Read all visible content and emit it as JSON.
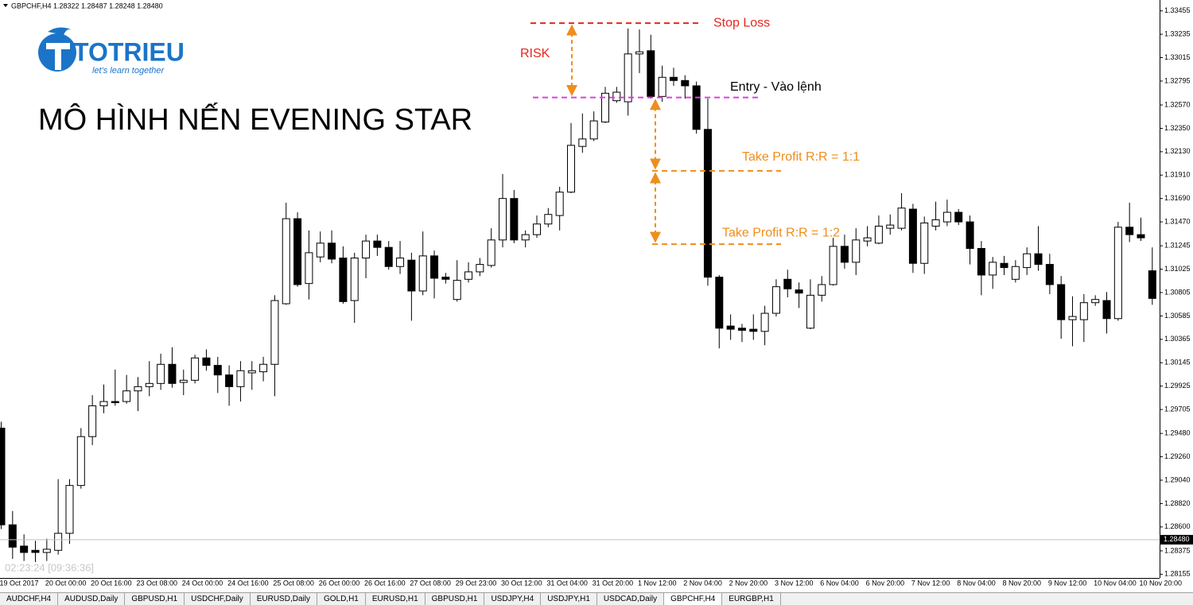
{
  "window": {
    "symbol_info": "GBPCHF,H4  1.28322 1.28487 1.28248 1.28480",
    "timer": "02:23:24 [09:36:36]",
    "tabs": [
      "AUDCHF,H4",
      "AUDUSD,Daily",
      "GBPUSD,H1",
      "USDCHF,Daily",
      "EURUSD,Daily",
      "GOLD,H1",
      "EURUSD,H1",
      "GBPUSD,H1",
      "USDJPY,H4",
      "USDJPY,H1",
      "USDCAD,Daily",
      "GBPCHF,H4",
      "EURGBP,H1"
    ],
    "active_tab": 11
  },
  "logo": {
    "name": "TOTRIEU",
    "tagline": "let's learn together"
  },
  "chart_data": {
    "type": "candlestick",
    "title": "MÔ HÌNH NẾN EVENING STAR",
    "categories": [
      "19 Oct 2017",
      null,
      null,
      null,
      "20 Oct 00:00",
      null,
      null,
      null,
      "20 Oct 16:00",
      null,
      null,
      null,
      "23 Oct 08:00",
      null,
      null,
      null,
      "24 Oct 00:00",
      null,
      null,
      null,
      "24 Oct 16:00",
      null,
      null,
      null,
      "25 Oct 08:00",
      null,
      null,
      null,
      "26 Oct 00:00",
      null,
      null,
      null,
      "26 Oct 16:00",
      null,
      null,
      null,
      "27 Oct 08:00",
      null,
      null,
      null,
      "29 Oct 23:00",
      null,
      null,
      null,
      "30 Oct 12:00",
      null,
      null,
      null,
      "31 Oct 04:00",
      null,
      null,
      null,
      "31 Oct 20:00",
      null,
      null,
      null,
      "1 Nov 12:00",
      null,
      null,
      null,
      "2 Nov 04:00",
      null,
      null,
      null,
      "2 Nov 20:00",
      null,
      null,
      null,
      "3 Nov 12:00",
      null,
      null,
      null,
      "6 Nov 04:00",
      null,
      null,
      null,
      "6 Nov 20:00",
      null,
      null,
      null,
      "7 Nov 12:00",
      null,
      null,
      null,
      "8 Nov 04:00",
      null,
      null,
      null,
      "8 Nov 20:00",
      null,
      null,
      null,
      "9 Nov 12:00",
      null,
      null,
      null,
      "10 Nov 04:00",
      null,
      null,
      null,
      "10 Nov 20:00",
      null
    ],
    "open": [
      1.2953,
      1.2862,
      1.2842,
      1.2838,
      1.2836,
      1.2838,
      1.2854,
      1.2899,
      1.2945,
      1.2974,
      1.2978,
      1.2978,
      1.2988,
      1.2992,
      1.2995,
      1.3013,
      1.2996,
      1.2998,
      1.3019,
      1.3012,
      1.3003,
      1.2992,
      1.3005,
      1.3006,
      1.3013,
      1.307,
      1.315,
      1.3089,
      1.3114,
      1.3127,
      1.3113,
      1.3073,
      1.3113,
      1.3129,
      1.3123,
      1.3105,
      1.3111,
      1.3082,
      1.3115,
      1.3095,
      1.3074,
      1.3093,
      1.31,
      1.3106,
      1.313,
      1.3169,
      1.313,
      1.3135,
      1.3145,
      1.3153,
      1.3175,
      1.3218,
      1.3225,
      1.3241,
      1.3261,
      1.326,
      1.3305,
      1.3308,
      1.3265,
      1.3283,
      1.328,
      1.3275,
      1.3234,
      1.3095,
      1.3049,
      1.3047,
      1.3046,
      1.3044,
      1.3061,
      1.3093,
      1.3083,
      1.3047,
      1.3078,
      1.3088,
      1.3124,
      1.3109,
      1.3129,
      1.3127,
      1.3141,
      1.3141,
      1.3159,
      1.3108,
      1.3143,
      1.3147,
      1.3156,
      1.3147,
      1.3122,
      1.3097,
      1.3108,
      1.3093,
      1.3104,
      1.3117,
      1.3107,
      1.3088,
      1.3055,
      1.3055,
      1.3071,
      1.3073,
      1.3056,
      1.3142,
      1.3135,
      1.3101
    ],
    "high": [
      1.2959,
      1.2875,
      1.2853,
      1.2847,
      1.2849,
      1.2905,
      1.2905,
      1.2953,
      1.2984,
      1.2994,
      1.3008,
      1.3003,
      1.3001,
      1.3016,
      1.3023,
      1.3029,
      1.3008,
      1.3022,
      1.3027,
      1.302,
      1.3012,
      1.3016,
      1.3016,
      1.302,
      1.3078,
      1.3165,
      1.3156,
      1.3139,
      1.3138,
      1.3139,
      1.3124,
      1.3118,
      1.3135,
      1.3135,
      1.3129,
      1.3129,
      1.3118,
      1.3138,
      1.312,
      1.3099,
      1.3111,
      1.3109,
      1.3113,
      1.3141,
      1.3192,
      1.3177,
      1.3139,
      1.3153,
      1.316,
      1.318,
      1.324,
      1.3249,
      1.3251,
      1.3274,
      1.3274,
      1.3329,
      1.3328,
      1.3323,
      1.3294,
      1.3292,
      1.3285,
      1.3279,
      1.3263,
      1.3097,
      1.306,
      1.3051,
      1.306,
      1.3068,
      1.3093,
      1.3102,
      1.309,
      1.3093,
      1.3096,
      1.3132,
      1.3135,
      1.3141,
      1.3143,
      1.3153,
      1.3154,
      1.3174,
      1.3164,
      1.3152,
      1.3166,
      1.3168,
      1.3159,
      1.3153,
      1.3129,
      1.3114,
      1.3115,
      1.3111,
      1.3123,
      1.3143,
      1.3117,
      1.3096,
      1.3077,
      1.3079,
      1.3078,
      1.3081,
      1.3147,
      1.3165,
      1.3151,
      1.3123
    ],
    "low": [
      1.2858,
      1.283,
      1.2828,
      1.2827,
      1.2828,
      1.2834,
      1.2844,
      1.2896,
      1.2937,
      1.2967,
      1.2974,
      1.2976,
      1.2969,
      1.2983,
      1.2989,
      1.2991,
      1.2984,
      1.2995,
      1.3007,
      1.2986,
      1.2974,
      1.2978,
      1.2989,
      1.2997,
      1.2983,
      1.3069,
      1.3086,
      1.3074,
      1.3109,
      1.3108,
      1.307,
      1.3052,
      1.3094,
      1.3115,
      1.3102,
      1.3098,
      1.3054,
      1.3078,
      1.3075,
      1.3089,
      1.3072,
      1.309,
      1.3096,
      1.3104,
      1.3123,
      1.3127,
      1.3123,
      1.3132,
      1.3142,
      1.3139,
      1.3174,
      1.3212,
      1.3223,
      1.324,
      1.3259,
      1.3247,
      1.3287,
      1.3263,
      1.326,
      1.3275,
      1.3263,
      1.323,
      1.3087,
      1.3028,
      1.3036,
      1.3034,
      1.3036,
      1.3031,
      1.3058,
      1.3076,
      1.3066,
      1.3046,
      1.3072,
      1.3087,
      1.3103,
      1.3097,
      1.3124,
      1.3126,
      1.3135,
      1.3139,
      1.3099,
      1.3098,
      1.3139,
      1.3143,
      1.3144,
      1.3107,
      1.3078,
      1.3084,
      1.3097,
      1.309,
      1.3097,
      1.3101,
      1.3079,
      1.3037,
      1.303,
      1.3034,
      1.3068,
      1.3042,
      1.3054,
      1.3128,
      1.3129,
      1.3069
    ],
    "close": [
      1.2862,
      1.2841,
      1.2836,
      1.2836,
      1.2839,
      1.2854,
      1.2899,
      1.2945,
      1.2974,
      1.2978,
      1.2977,
      1.2988,
      1.2992,
      1.2995,
      1.3013,
      1.2995,
      1.2998,
      1.3019,
      1.3012,
      1.3003,
      1.2992,
      1.3007,
      1.3007,
      1.3013,
      1.3073,
      1.315,
      1.3088,
      1.3118,
      1.3127,
      1.3112,
      1.3072,
      1.3113,
      1.3129,
      1.3123,
      1.3105,
      1.3113,
      1.3082,
      1.3115,
      1.3094,
      1.3093,
      1.3092,
      1.31,
      1.3107,
      1.313,
      1.3169,
      1.313,
      1.3135,
      1.3145,
      1.3154,
      1.3175,
      1.3219,
      1.3225,
      1.3242,
      1.3268,
      1.3269,
      1.3305,
      1.3307,
      1.3265,
      1.3283,
      1.328,
      1.3275,
      1.3234,
      1.3095,
      1.3047,
      1.3046,
      1.3045,
      1.3044,
      1.3061,
      1.3086,
      1.3084,
      1.308,
      1.3078,
      1.3088,
      1.3124,
      1.3109,
      1.313,
      1.3132,
      1.3143,
      1.3144,
      1.316,
      1.3108,
      1.3146,
      1.3149,
      1.3156,
      1.3147,
      1.3122,
      1.3097,
      1.3109,
      1.3104,
      1.3105,
      1.3117,
      1.3107,
      1.3088,
      1.3055,
      1.3058,
      1.3071,
      1.3074,
      1.3056,
      1.3142,
      1.3135,
      1.3132,
      1.3075
    ],
    "ylim": [
      1.2812,
      1.3352
    ],
    "yticks": [
      1.33455,
      1.33235,
      1.33015,
      1.32795,
      {
        "value": 1.3257,
        "label": "1.32570"
      },
      {
        "value": 1.3235,
        "label": "1.32350"
      },
      {
        "value": 1.3213,
        "label": "1.32130"
      },
      {
        "value": 1.3191,
        "label": "1.31910"
      },
      {
        "value": 1.3169,
        "label": "1.31690"
      },
      {
        "value": 1.3147,
        "label": "1.31470"
      },
      1.31245,
      1.31025,
      1.30805,
      1.30585,
      1.30365,
      1.30145,
      1.29925,
      1.29705,
      {
        "value": 1.2948,
        "label": "1.29480"
      },
      {
        "value": 1.2926,
        "label": "1.29260"
      },
      {
        "value": 1.2904,
        "label": "1.29040"
      },
      {
        "value": 1.2882,
        "label": "1.28820"
      },
      {
        "value": 1.286,
        "label": "1.28600"
      },
      1.28375,
      1.28155
    ],
    "price_line": {
      "value": 1.2848,
      "label": "1.28480"
    },
    "grid": false,
    "up_color": "#ffffff",
    "down_color": "#000000",
    "levels": [
      {
        "label": "Stop Loss",
        "value": 1.3334,
        "color": "#e5261f"
      },
      {
        "label": "Entry - Vào lệnh",
        "value": 1.3264,
        "color": "#df3edc",
        "label_color": "#000000"
      },
      {
        "label": "Take Profit R:R = 1:1",
        "value": 1.3195,
        "color": "#ef8d1d"
      },
      {
        "label": "Take Profit R:R = 1:2",
        "value": 1.3126,
        "color": "#ef8d1d"
      }
    ],
    "risk_label": {
      "text": "RISK",
      "color": "#e5261f"
    }
  }
}
